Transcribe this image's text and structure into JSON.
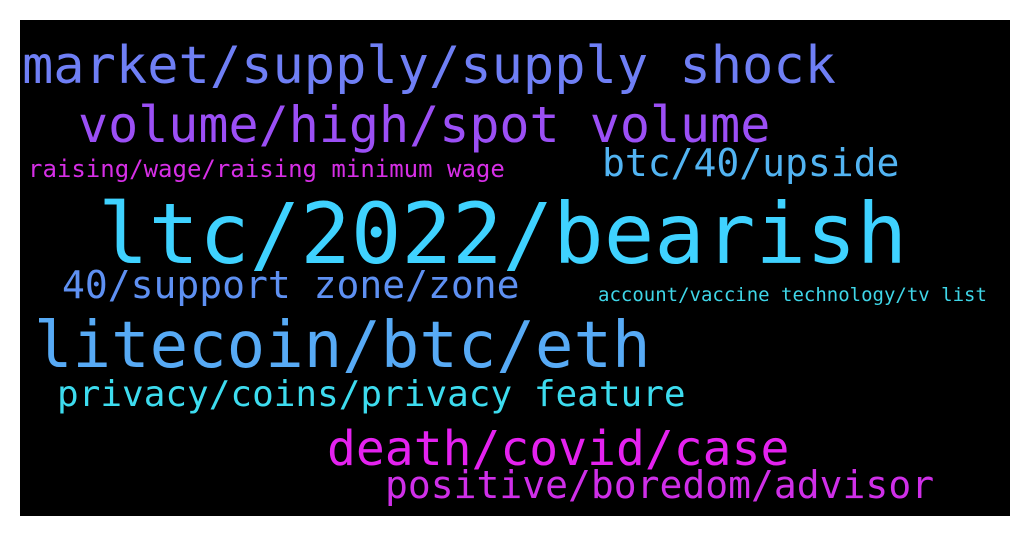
{
  "words": [
    {
      "text": "market/supply/supply shock",
      "color": "#6f7ff5"
    },
    {
      "text": "volume/high/spot volume",
      "color": "#9b4ff5"
    },
    {
      "text": "raising/wage/raising minimum wage",
      "color": "#d62fe6"
    },
    {
      "text": "btc/40/upside",
      "color": "#52b4f2"
    },
    {
      "text": "ltc/2022/bearish",
      "color": "#3fd2ff"
    },
    {
      "text": "40/support zone/zone",
      "color": "#5e90f2"
    },
    {
      "text": "account/vaccine technology/tv list",
      "color": "#3fd6e8"
    },
    {
      "text": "litecoin/btc/eth",
      "color": "#57aaf5"
    },
    {
      "text": "privacy/coins/privacy feature",
      "color": "#3ddcef"
    },
    {
      "text": "death/covid/case",
      "color": "#e422ef"
    },
    {
      "text": "positive/boredom/advisor",
      "color": "#cf2fe8"
    }
  ]
}
